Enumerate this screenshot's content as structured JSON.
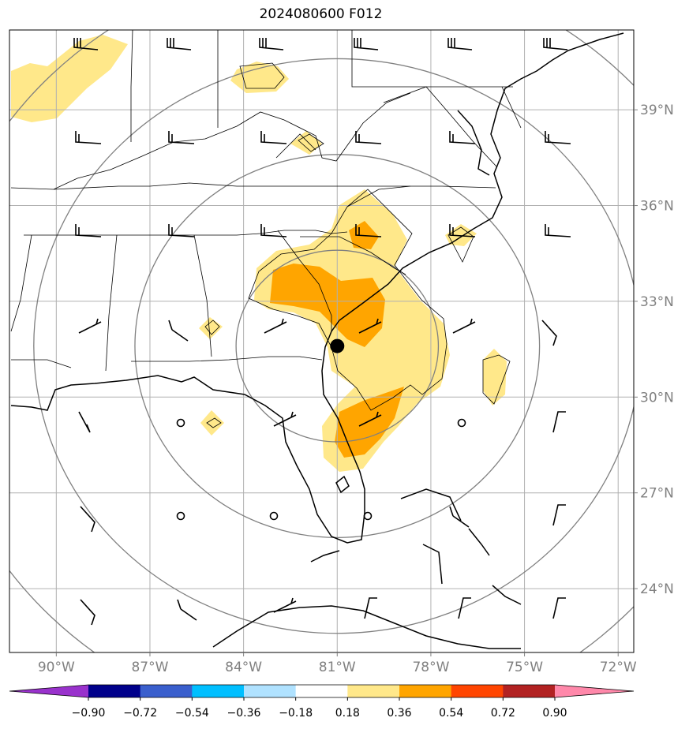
{
  "title": "2024080600 F012",
  "map": {
    "extent": {
      "lon": [
        -91.5,
        -71.5
      ],
      "lat": [
        22.0,
        41.5
      ]
    },
    "lat_ticks": [
      {
        "value": 24,
        "label": "24°N"
      },
      {
        "value": 27,
        "label": "27°N"
      },
      {
        "value": 30,
        "label": "30°N"
      },
      {
        "value": 33,
        "label": "33°N"
      },
      {
        "value": 36,
        "label": "36°N"
      },
      {
        "value": 39,
        "label": "39°N"
      }
    ],
    "lon_ticks": [
      {
        "value": -90,
        "label": "90°W"
      },
      {
        "value": -87,
        "label": "87°W"
      },
      {
        "value": -84,
        "label": "84°W"
      },
      {
        "value": -81,
        "label": "81°W"
      },
      {
        "value": -78,
        "label": "78°W"
      },
      {
        "value": -75,
        "label": "75°W"
      },
      {
        "value": -72,
        "label": "72°W"
      }
    ],
    "storm_center": {
      "lon": -81.0,
      "lat": 31.6
    },
    "range_rings_deg": [
      3,
      6,
      9,
      12
    ],
    "colors": {
      "land_line": "#000000",
      "grid": "#b0b0b0",
      "ring": "#808080",
      "shade_low": "#ffe88a",
      "shade_mid": "#ffa500"
    }
  },
  "colorbar": {
    "colors": [
      "#9932cc",
      "#00008b",
      "#3a5fcd",
      "#00bfff",
      "#b0e2ff",
      "#ffffff",
      "#ffe88a",
      "#ffa500",
      "#ff4500",
      "#b22222",
      "#ff88aa"
    ],
    "tick_labels": [
      "−0.90",
      "−0.72",
      "−0.54",
      "−0.36",
      "−0.18",
      "0.18",
      "0.36",
      "0.54",
      "0.72",
      "0.90"
    ]
  }
}
